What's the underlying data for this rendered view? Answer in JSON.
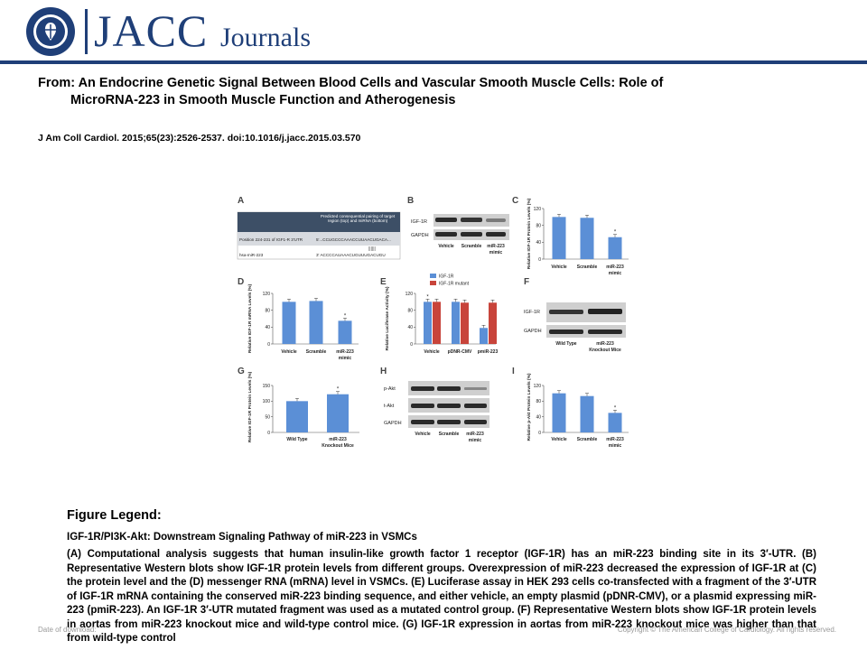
{
  "header": {
    "brand": "JACC",
    "brand_sub": "Journals",
    "seal_text": "AMERICAN COLLEGE OF CARDIOLOGY"
  },
  "from_line1": "From: An Endocrine Genetic Signal Between Blood Cells and Vascular Smooth Muscle Cells: Role of",
  "from_line2": "MicroRNA-223 in Smooth Muscle Function and Atherogenesis",
  "citation": "J Am Coll Cardiol. 2015;65(23):2526-2537. doi:10.1016/j.jacc.2015.03.570",
  "figure": {
    "panel_labels": [
      "A",
      "B",
      "C",
      "D",
      "E",
      "F",
      "G",
      "H",
      "I"
    ],
    "panel_a": {
      "header_right": "Predicted consequential pairing of target region (top) and miRNA (bottom)",
      "row1_left": "Position 224-231 of IGF1-R 3'UTR",
      "row1_right": "5'...CCUGCCCAAACCUUAACUGACA...",
      "row2_left": "hsa-miR-223",
      "row2_right": "3'   ACCCCAUAAACUGUUUGACUGU"
    },
    "blot_labels": {
      "igf1r": "IGF-1R",
      "gapdh": "GAPDH",
      "pakt": "p-Akt",
      "takt": "t-Akt"
    },
    "groups": {
      "vehicle": "Vehicle",
      "scramble": "Scramble",
      "mir223": "miR-223",
      "mimic": "mimic",
      "wild_type": "Wild Type",
      "knockout": "miR-223",
      "knockout2": "Knockout Mice",
      "pdnr": "pDNR-CMV",
      "pmir": "pmiR-223"
    },
    "axis_labels": {
      "c": "Relative IGF-1R Protein Levels (%)",
      "d": "Relative IGF-1R mRNA Levels (%)",
      "e": "Relative Luciferase Activity (%)",
      "g": "Relative IGF-1R Protein Levels (%)",
      "i": "Relative p-Akt Protein Levels (%)"
    },
    "e_legend": [
      "IGF-1R",
      "IGF-1R mutant"
    ],
    "asterisk": "*",
    "colors": {
      "blue": "#5b8fd6",
      "red": "#c8443b"
    }
  },
  "chart_data": [
    {
      "panel": "C",
      "type": "bar",
      "categories": [
        "Vehicle",
        "Scramble",
        "miR-223 mimic"
      ],
      "values": [
        100,
        98,
        52
      ],
      "ylim": [
        0,
        120
      ],
      "yticks": [
        0,
        40,
        80,
        120
      ]
    },
    {
      "panel": "D",
      "type": "bar",
      "categories": [
        "Vehicle",
        "Scramble",
        "miR-223 mimic"
      ],
      "values": [
        100,
        102,
        55
      ],
      "ylim": [
        0,
        120
      ],
      "yticks": [
        0,
        40,
        80,
        120
      ]
    },
    {
      "panel": "E",
      "type": "bar",
      "categories": [
        "Vehicle",
        "pDNR-CMV",
        "pmiR-223"
      ],
      "series": [
        {
          "name": "IGF-1R",
          "values": [
            100,
            100,
            38
          ]
        },
        {
          "name": "IGF-1R mutant",
          "values": [
            100,
            98,
            98
          ]
        }
      ],
      "ylim": [
        0,
        120
      ],
      "yticks": [
        0,
        40,
        80,
        120
      ]
    },
    {
      "panel": "G",
      "type": "bar",
      "categories": [
        "Wild Type",
        "miR-223 Knockout Mice"
      ],
      "values": [
        100,
        122
      ],
      "ylim": [
        0,
        150
      ],
      "yticks": [
        0,
        50,
        100,
        150
      ]
    },
    {
      "panel": "I",
      "type": "bar",
      "categories": [
        "Vehicle",
        "Scramble",
        "miR-223 mimic"
      ],
      "values": [
        100,
        93,
        50
      ],
      "ylim": [
        0,
        120
      ],
      "yticks": [
        0,
        40,
        80,
        120
      ]
    }
  ],
  "legend_title": "Figure Legend:",
  "legend_subtitle": "IGF-1R/PI3K-Akt: Downstream Signaling Pathway of miR-223 in VSMCs",
  "legend_body": "(A) Computational analysis suggests that human insulin-like growth factor 1 receptor (IGF-1R) has an miR-223 binding site in its 3′-UTR. (B) Representative Western blots show IGF-1R protein levels from different groups. Overexpression of miR-223 decreased the expression of IGF-1R at (C) the protein level and the (D) messenger RNA (mRNA) level in VSMCs. (E) Luciferase assay in HEK 293 cells co-transfected with a fragment of the 3′-UTR of IGF-1R mRNA containing the conserved miR-223 binding sequence, and either vehicle, an empty plasmid (pDNR-CMV), or a plasmid expressing miR-223 (pmiR-223). An IGF-1R 3′-UTR mutated fragment was used as a mutated control group. (F) Representative Western blots show IGF-1R protein levels in aortas from miR-223 knockout mice and wild-type control mice. (G) IGF-1R expression in aortas from miR-223 knockout mice was higher than that from wild-type control",
  "footer_left": "Date of download:",
  "footer_right": "Copyright © The American College of Cardiology. All rights reserved."
}
